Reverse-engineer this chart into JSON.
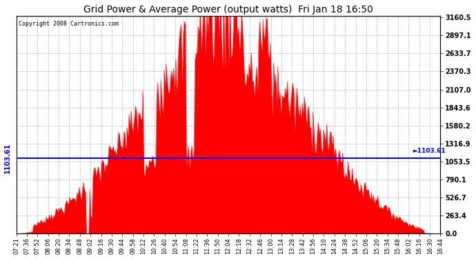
{
  "title": "Grid Power & Average Power (output watts)  Fri Jan 18 16:50",
  "copyright": "Copyright 2008 Cartronics.com",
  "avg_power": 1103.61,
  "y_max": 3160.5,
  "y_ticks": [
    0.0,
    263.4,
    526.7,
    790.1,
    1053.5,
    1316.9,
    1580.2,
    1843.6,
    2107.0,
    2370.3,
    2633.7,
    2897.1,
    3160.5
  ],
  "fill_color": "#FF0000",
  "line_color": "#0000FF",
  "bg_color": "#FFFFFF",
  "grid_color": "#BBBBBB",
  "x_labels": [
    "07:21",
    "07:36",
    "07:52",
    "08:06",
    "08:20",
    "08:34",
    "08:48",
    "09:02",
    "09:16",
    "09:30",
    "09:44",
    "09:58",
    "10:12",
    "10:26",
    "10:40",
    "10:54",
    "11:08",
    "11:22",
    "11:36",
    "11:50",
    "12:04",
    "12:18",
    "12:32",
    "12:46",
    "13:00",
    "13:14",
    "13:28",
    "13:42",
    "13:56",
    "14:10",
    "14:24",
    "14:38",
    "14:52",
    "15:06",
    "15:20",
    "15:34",
    "15:48",
    "16:02",
    "16:16",
    "16:30",
    "16:44"
  ]
}
